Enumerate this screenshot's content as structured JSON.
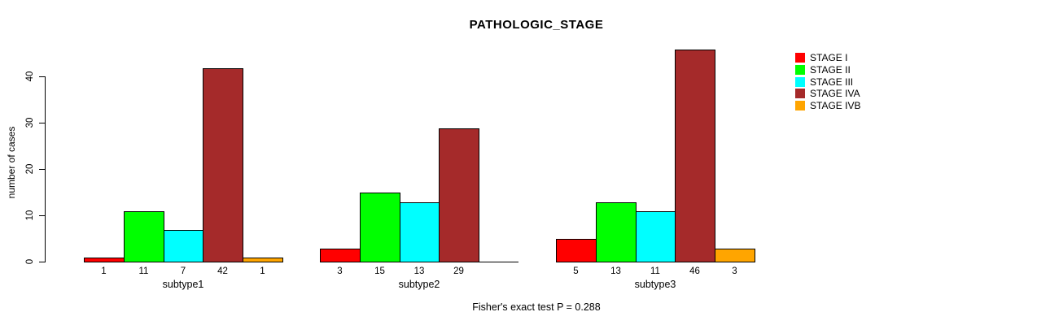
{
  "chart_data": {
    "type": "bar",
    "title": "PATHOLOGIC_STAGE",
    "ylabel": "number of cases",
    "xlabel": "",
    "ylim": [
      0,
      46
    ],
    "yticks": [
      0,
      10,
      20,
      30,
      40
    ],
    "grid": false,
    "legend_position": "right",
    "categories": [
      "subtype1",
      "subtype2",
      "subtype3"
    ],
    "series": [
      {
        "name": "STAGE I",
        "color": "#ff0000",
        "values": [
          1,
          3,
          5
        ]
      },
      {
        "name": "STAGE II",
        "color": "#00ff00",
        "values": [
          11,
          15,
          13
        ]
      },
      {
        "name": "STAGE III",
        "color": "#00ffff",
        "values": [
          7,
          13,
          11
        ]
      },
      {
        "name": "STAGE IVA",
        "color": "#a52a2a",
        "values": [
          42,
          29,
          46
        ]
      },
      {
        "name": "STAGE IVB",
        "color": "#ffa500",
        "values": [
          1,
          0,
          3
        ]
      }
    ],
    "bar_value_labels": [
      [
        1,
        11,
        7,
        42,
        1
      ],
      [
        3,
        15,
        13,
        29
      ],
      [
        5,
        13,
        11,
        46,
        3
      ]
    ],
    "zero_value_labels_hidden": true,
    "annotation": "Fisher's exact test P = 0.288"
  }
}
